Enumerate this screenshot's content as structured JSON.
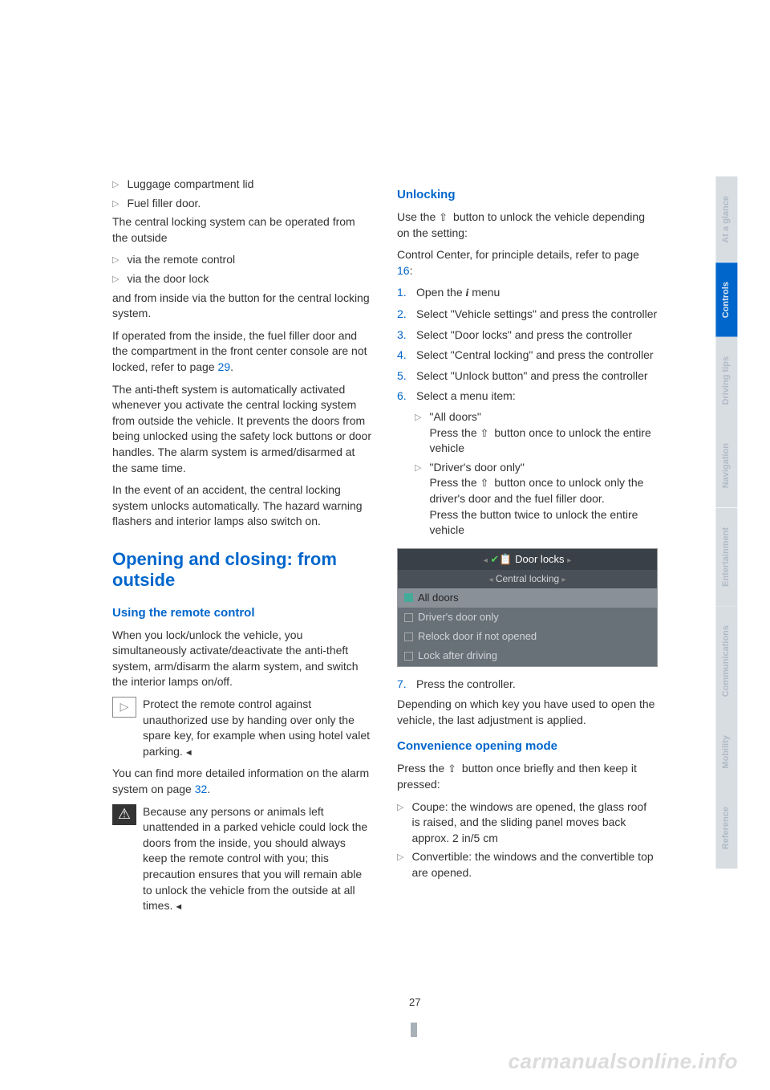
{
  "tabs": [
    {
      "label": "At a glance",
      "active": false
    },
    {
      "label": "Controls",
      "active": true
    },
    {
      "label": "Driving tips",
      "active": false
    },
    {
      "label": "Navigation",
      "active": false
    },
    {
      "label": "Entertainment",
      "active": false
    },
    {
      "label": "Communications",
      "active": false
    },
    {
      "label": "Mobility",
      "active": false
    },
    {
      "label": "Reference",
      "active": false
    }
  ],
  "left": {
    "b1": "Luggage compartment lid",
    "b2": "Fuel filler door.",
    "p1": "The central locking system can be operated from the outside",
    "b3": "via the remote control",
    "b4": "via the door lock",
    "p2": "and from inside via the button for the central locking system.",
    "p3a": "If operated from the inside, the fuel filler door and the compartment in the front center console are not locked, refer to page ",
    "p3link": "29",
    "p3b": ".",
    "p4": "The anti-theft system is automatically activated whenever you activate the central locking system from outside the vehicle. It prevents the doors from being unlocked using the safety lock buttons or door handles. The alarm system is armed/disarmed at the same time.",
    "p5": "In the event of an accident, the central locking system unlocks automatically. The hazard warning flashers and interior lamps also switch on.",
    "h1": "Opening and closing: from outside",
    "h2": "Using the remote control",
    "p6": "When you lock/unlock the vehicle, you simultaneously activate/deactivate the anti-theft system, arm/disarm the alarm system, and switch the interior lamps on/off.",
    "note1": "Protect the remote control against unauthorized use by handing over only the spare key, for example when using hotel valet parking.",
    "p7a": "You can find more detailed information on the alarm system on page ",
    "p7link": "32",
    "p7b": ".",
    "warn1": "Because any persons or animals left unattended in a parked vehicle could lock the doors from the inside, you should always keep the remote control with you; this precaution ensures that you will remain able to unlock the vehicle from the outside at all times."
  },
  "right": {
    "h2a": "Unlocking",
    "p1a": "Use the ",
    "p1b": " button to unlock the vehicle depending on the setting:",
    "p2a": "Control Center, for principle details, refer to page ",
    "p2link": "16",
    "p2b": ":",
    "s1a": "Open the ",
    "s1b": " menu",
    "s2": "Select \"Vehicle settings\" and press the controller",
    "s3": "Select \"Door locks\" and press the controller",
    "s4": "Select \"Central locking\" and press the controller",
    "s5": "Select \"Unlock button\" and press the controller",
    "s6": "Select a menu item:",
    "s6a_t": "\"All doors\"",
    "s6a_d1": "Press the ",
    "s6a_d2": " button once to unlock the entire vehicle",
    "s6b_t": "\"Driver's door only\"",
    "s6b_d1": "Press the ",
    "s6b_d2": " button once to unlock only the driver's door and the fuel filler door.",
    "s6b_d3": "Press the button twice to unlock the entire vehicle",
    "ss": {
      "title": "Door locks",
      "sub": "Central locking",
      "r1": "All doors",
      "r2": "Driver's door only",
      "r3": "Relock door if not opened",
      "r4": "Lock after driving"
    },
    "s7": "Press the controller.",
    "p3": "Depending on which key you have used to open the vehicle, the last adjustment is applied.",
    "h2b": "Convenience opening mode",
    "p4a": "Press the ",
    "p4b": " button once briefly and then keep it pressed:",
    "c1": "Coupe: the windows are opened, the glass roof is raised, and the sliding panel moves back approx. 2 in/5 cm",
    "c2": "Convertible: the windows and the convertible top are opened."
  },
  "pagenum": "27",
  "watermark": "carmanualsonline.info"
}
